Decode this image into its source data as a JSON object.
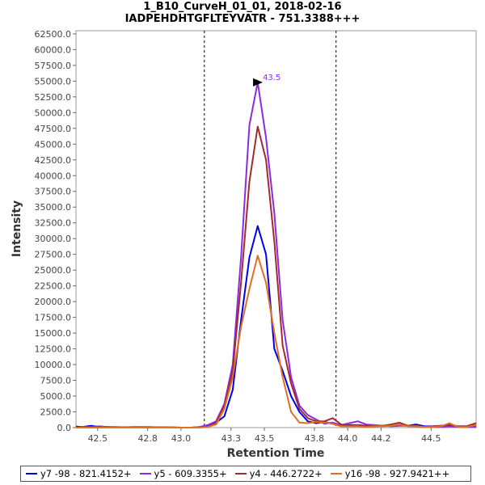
{
  "chart_data": {
    "type": "line",
    "title": "1_B10_CurveH_01_01, 2018-02-16",
    "subtitle": "IADPEHDHTGFLTEYVATR - 751.3388+++",
    "xlabel": "Retention Time",
    "ylabel": "Intensity",
    "xlim": [
      42.37,
      44.77
    ],
    "ylim": [
      0,
      63000
    ],
    "xticks": [
      42.5,
      42.8,
      43.0,
      43.3,
      43.5,
      43.8,
      44.0,
      44.2,
      44.5
    ],
    "xtick_labels": [
      "42.5",
      "42.8",
      "43.0",
      "43.3",
      "43.5",
      "43.8",
      "44.0",
      "44.2",
      "44.5"
    ],
    "yticks": [
      0,
      2500,
      5000,
      7500,
      10000,
      12500,
      15000,
      17500,
      20000,
      22500,
      25000,
      27500,
      30000,
      32500,
      35000,
      37500,
      40000,
      42500,
      45000,
      47500,
      50000,
      52500,
      55000,
      57500,
      60000,
      62500
    ],
    "ytick_labels": [
      "0.0",
      "2500.0",
      "5000.0",
      "7500.0",
      "10000.0",
      "12500.0",
      "15000.0",
      "17500.0",
      "20000.0",
      "22500.0",
      "25000.0",
      "27500.0",
      "30000.0",
      "32500.0",
      "35000.0",
      "37500.0",
      "40000.0",
      "42500.0",
      "45000.0",
      "47500.0",
      "50000.0",
      "52500.0",
      "55000.0",
      "57500.0",
      "60000.0",
      "62500.0"
    ],
    "vlines": [
      43.14,
      43.93
    ],
    "annotation": {
      "label": "43.5",
      "x": 43.5,
      "y": 54800,
      "color": "#8a2be2"
    },
    "x": [
      42.37,
      42.41,
      42.46,
      42.51,
      42.56,
      42.61,
      42.66,
      42.71,
      42.76,
      42.81,
      42.86,
      42.91,
      42.96,
      43.01,
      43.06,
      43.11,
      43.16,
      43.21,
      43.26,
      43.31,
      43.36,
      43.41,
      43.46,
      43.51,
      43.56,
      43.61,
      43.66,
      43.71,
      43.76,
      43.81,
      43.86,
      43.91,
      43.96,
      44.01,
      44.06,
      44.11,
      44.16,
      44.21,
      44.26,
      44.31,
      44.36,
      44.41,
      44.46,
      44.51,
      44.56,
      44.61,
      44.66,
      44.71,
      44.77
    ],
    "series": [
      {
        "name": "y7 -98 - 821.4152+",
        "color": "#0000ee",
        "values": [
          150,
          100,
          300,
          100,
          100,
          50,
          50,
          50,
          50,
          50,
          50,
          50,
          0,
          0,
          0,
          50,
          200,
          800,
          1800,
          6000,
          17000,
          27000,
          32000,
          27500,
          12500,
          9000,
          5000,
          2500,
          1000,
          700,
          900,
          600,
          300,
          400,
          400,
          300,
          200,
          300,
          300,
          400,
          300,
          500,
          200,
          200,
          300,
          300,
          200,
          200,
          200
        ]
      },
      {
        "name": "y5 - 609.3355+",
        "color": "#8a2be2",
        "values": [
          0,
          100,
          100,
          200,
          100,
          100,
          50,
          100,
          100,
          100,
          50,
          50,
          50,
          0,
          0,
          100,
          400,
          1000,
          3800,
          10000,
          27000,
          48000,
          54800,
          46000,
          34000,
          17000,
          8000,
          3500,
          2000,
          1300,
          600,
          800,
          400,
          700,
          1000,
          500,
          400,
          300,
          200,
          300,
          300,
          200,
          100,
          100,
          100,
          200,
          100,
          100,
          100
        ]
      },
      {
        "name": "y4 - 446.2722+",
        "color": "#a52a2a",
        "values": [
          0,
          0,
          100,
          0,
          0,
          0,
          0,
          0,
          0,
          0,
          0,
          0,
          0,
          0,
          0,
          50,
          100,
          700,
          3500,
          9000,
          23000,
          39000,
          47800,
          42500,
          29500,
          13000,
          7000,
          3000,
          1500,
          1000,
          1000,
          1500,
          500,
          300,
          400,
          300,
          200,
          300,
          500,
          800,
          300,
          300,
          100,
          200,
          300,
          500,
          200,
          200,
          700
        ]
      },
      {
        "name": "y16 -98 - 927.9421++",
        "color": "#e07020",
        "values": [
          0,
          0,
          0,
          0,
          0,
          0,
          0,
          0,
          0,
          0,
          0,
          0,
          0,
          0,
          0,
          0,
          100,
          500,
          3000,
          8000,
          16000,
          22000,
          27300,
          23000,
          15000,
          8000,
          2500,
          800,
          700,
          900,
          800,
          600,
          200,
          200,
          200,
          100,
          200,
          200,
          300,
          500,
          200,
          200,
          100,
          100,
          200,
          700,
          100,
          100,
          400
        ]
      }
    ]
  }
}
